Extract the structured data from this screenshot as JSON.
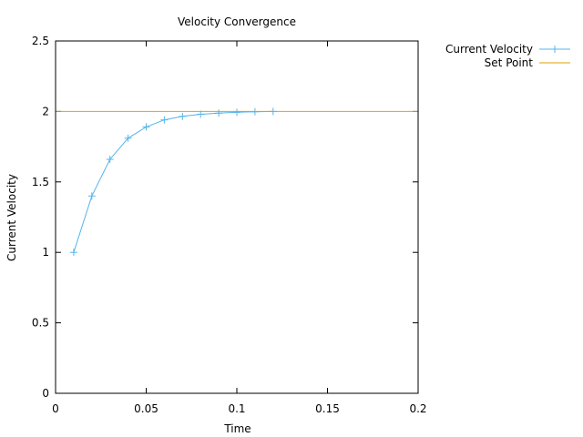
{
  "chart_data": {
    "type": "line",
    "title": "Velocity Convergence",
    "xlabel": "Time",
    "ylabel": "Current Velocity",
    "xlim": [
      0,
      0.2
    ],
    "ylim": [
      0,
      2.5
    ],
    "x_ticks": [
      "0",
      "0.05",
      "0.1",
      "0.15",
      "0.2"
    ],
    "x_tick_values": [
      0,
      0.05,
      0.1,
      0.15,
      0.2
    ],
    "y_ticks": [
      "0",
      "0.5",
      "1",
      "1.5",
      "2",
      "2.5"
    ],
    "y_tick_values": [
      0,
      0.5,
      1,
      1.5,
      2,
      2.5
    ],
    "grid": false,
    "legend_position": "top-right outside",
    "series": [
      {
        "name": "Current Velocity",
        "color": "#56b4e9",
        "marker": "plus",
        "x": [
          0.01,
          0.02,
          0.03,
          0.04,
          0.05,
          0.06,
          0.07,
          0.08,
          0.09,
          0.1,
          0.11,
          0.12
        ],
        "y": [
          1.0,
          1.4,
          1.66,
          1.81,
          1.89,
          1.94,
          1.965,
          1.98,
          1.988,
          1.994,
          1.998,
          2.0
        ]
      },
      {
        "name": "Set Point",
        "color": "#e69f00",
        "marker": "none",
        "x": [
          0,
          0.2
        ],
        "y": [
          2,
          2
        ]
      }
    ]
  }
}
